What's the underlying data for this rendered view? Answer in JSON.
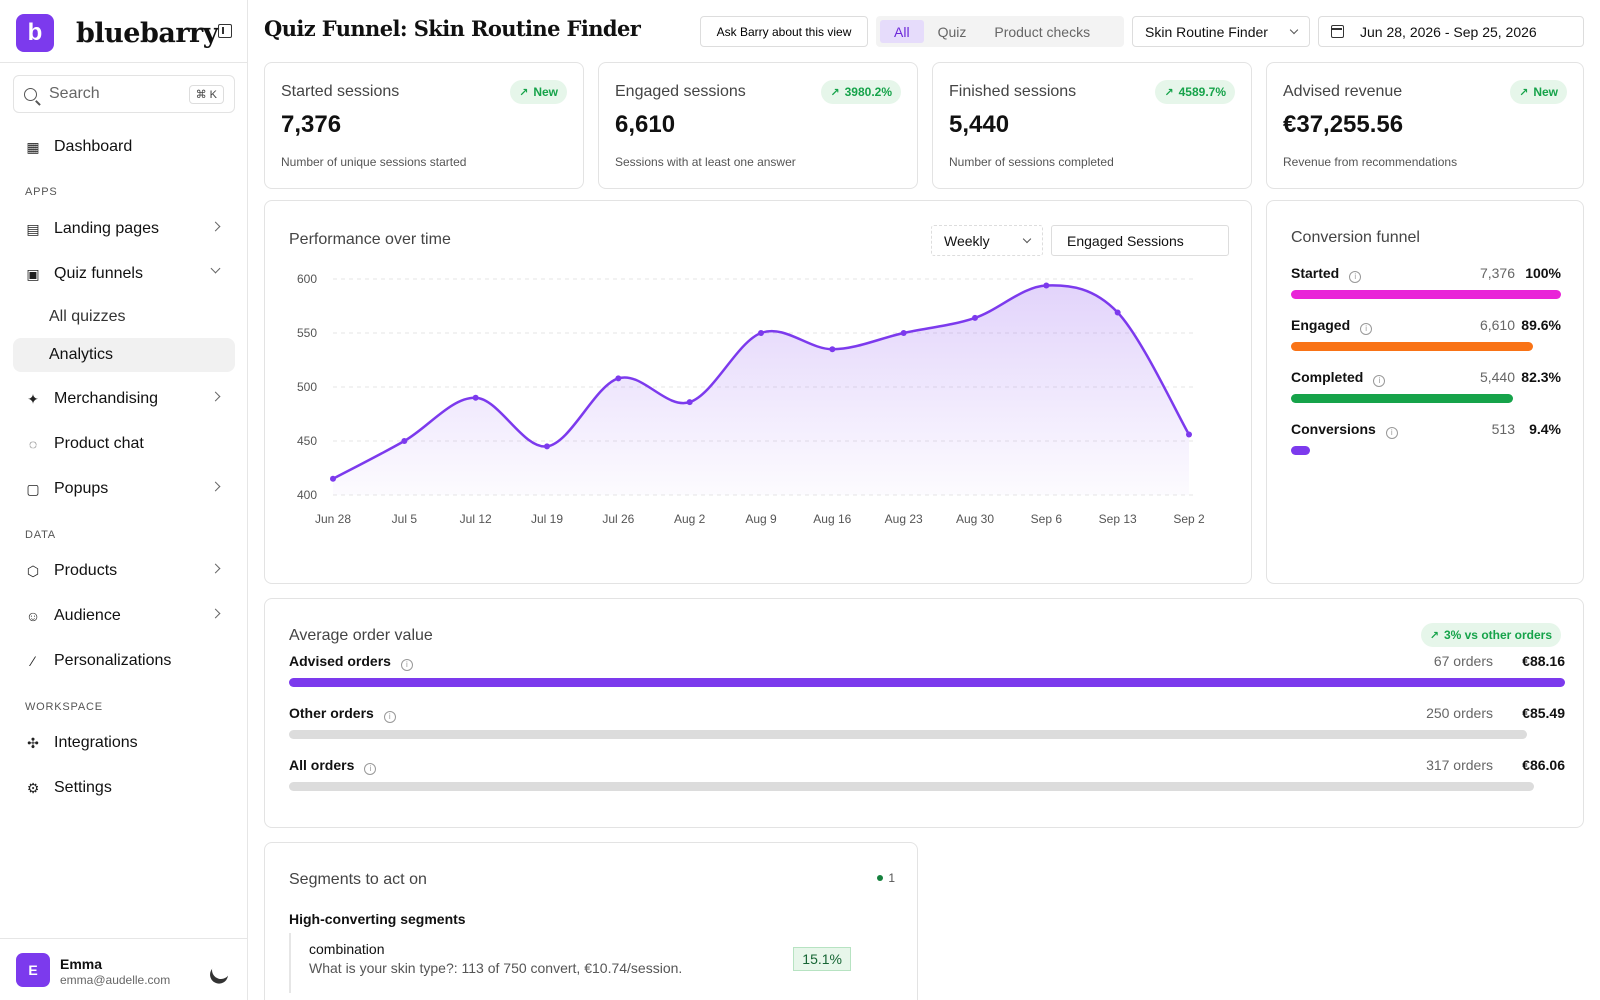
{
  "brand": {
    "logo_letter": "b",
    "name": "bluebarry"
  },
  "sidebar": {
    "search": {
      "placeholder": "Search",
      "shortcut": "⌘ K"
    },
    "dashboard": "Dashboard",
    "sections": {
      "apps": "APPS",
      "data": "DATA",
      "workspace": "WORKSPACE"
    },
    "apps": {
      "landing_pages": "Landing pages",
      "quiz_funnels": "Quiz funnels",
      "all_quizzes": "All quizzes",
      "analytics": "Analytics",
      "merchandising": "Merchandising",
      "product_chat": "Product chat",
      "popups": "Popups"
    },
    "data_items": {
      "products": "Products",
      "audience": "Audience",
      "personalizations": "Personalizations"
    },
    "workspace_items": {
      "integrations": "Integrations",
      "settings": "Settings"
    },
    "user": {
      "initial": "E",
      "name": "Emma",
      "email": "emma@audelle.com"
    }
  },
  "header": {
    "title": "Quiz Funnel: Skin Routine Finder",
    "ask_button": "Ask Barry about this view",
    "filters": {
      "all": "All",
      "quiz": "Quiz",
      "product_checks": "Product checks"
    },
    "quiz_select": "Skin Routine Finder",
    "date_range": "Jun 28, 2026 - Sep 25, 2026"
  },
  "kpis": [
    {
      "label": "Started sessions",
      "value": "7,376",
      "badge": "New",
      "desc": "Number of unique sessions started"
    },
    {
      "label": "Engaged sessions",
      "value": "6,610",
      "badge": "3980.2%",
      "desc": "Sessions with at least one answer"
    },
    {
      "label": "Finished sessions",
      "value": "5,440",
      "badge": "4589.7%",
      "desc": "Number of sessions completed"
    },
    {
      "label": "Advised revenue",
      "value": "€37,255.56",
      "badge": "New",
      "desc": "Revenue from recommendations"
    }
  ],
  "performance": {
    "title": "Performance over time",
    "interval": "Weekly",
    "metric": "Engaged Sessions"
  },
  "chart_data": {
    "type": "area",
    "x": [
      "Jun 28",
      "Jul 5",
      "Jul 12",
      "Jul 19",
      "Jul 26",
      "Aug 2",
      "Aug 9",
      "Aug 16",
      "Aug 23",
      "Aug 30",
      "Sep 6",
      "Sep 13",
      "Sep 2"
    ],
    "series": [
      {
        "values": [
          415,
          450,
          490,
          445,
          508,
          486,
          550,
          535,
          550,
          564,
          594,
          569,
          456
        ]
      }
    ],
    "y_ticks": [
      400,
      450,
      500,
      550,
      600
    ],
    "ylim": [
      400,
      600
    ],
    "grid": true,
    "color": "#7c3aed"
  },
  "funnel": {
    "title": "Conversion funnel",
    "rows": [
      {
        "label": "Started",
        "count": "7,376",
        "pct": "100%",
        "fraction": 1.0,
        "color": "#e924d8"
      },
      {
        "label": "Engaged",
        "count": "6,610",
        "pct": "89.6%",
        "fraction": 0.896,
        "color": "#f97316"
      },
      {
        "label": "Completed",
        "count": "5,440",
        "pct": "82.3%",
        "fraction": 0.823,
        "color": "#16a34a"
      },
      {
        "label": "Conversions",
        "count": "513",
        "pct": "9.4%",
        "fraction": 0.07,
        "color": "#7c3aed"
      }
    ]
  },
  "aov": {
    "title": "Average order value",
    "badge": "3% vs other orders",
    "rows": [
      {
        "label": "Advised orders",
        "count": "67 orders",
        "value": "€88.16",
        "fraction": 1.0,
        "color": "#7c3aed"
      },
      {
        "label": "Other orders",
        "count": "250 orders",
        "value": "€85.49",
        "fraction": 0.97,
        "color": "#dcdcdc"
      },
      {
        "label": "All orders",
        "count": "317 orders",
        "value": "€86.06",
        "fraction": 0.976,
        "color": "#dcdcdc"
      }
    ]
  },
  "segments": {
    "title": "Segments to act on",
    "count": "1",
    "group": "High-converting segments",
    "item": {
      "name": "combination",
      "desc": "What is your skin type?: 113 of 750 convert, €10.74/session.",
      "pct": "15.1%"
    }
  }
}
